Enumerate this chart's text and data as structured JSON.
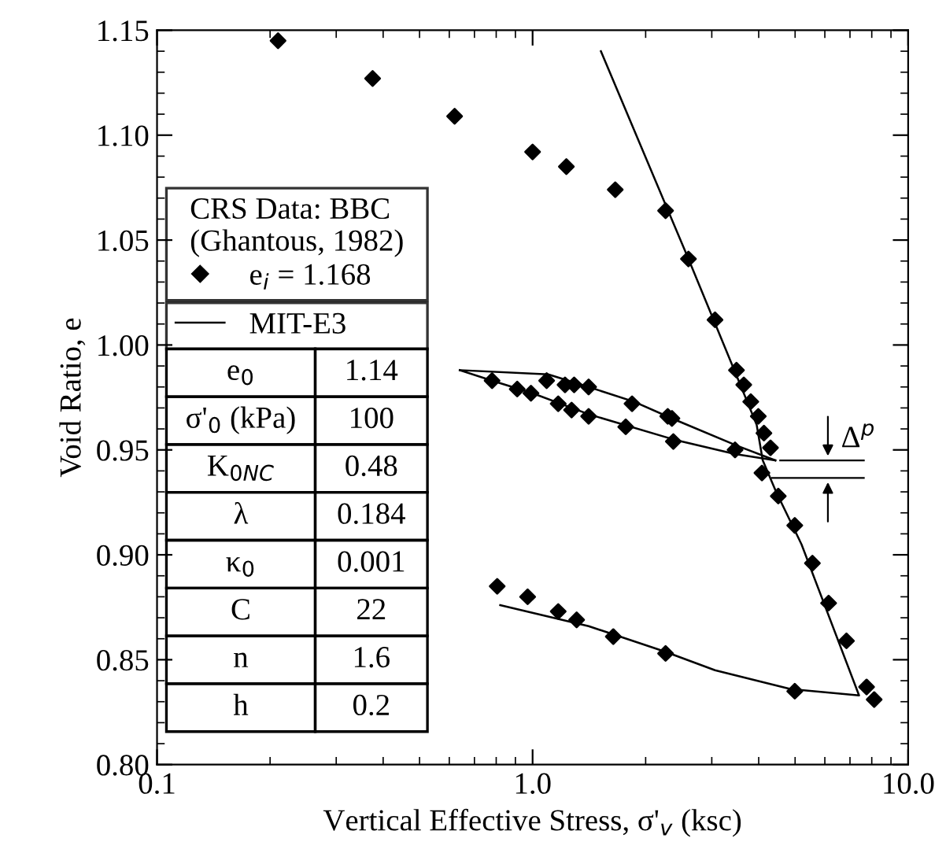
{
  "chart_data": {
    "type": "scatter",
    "xlabel": "Vertical Effective Stress, σ'$_{v}$ (ksc)",
    "ylabel": "Void Ratio, e",
    "log": "x",
    "xlim": [
      0.1,
      10.0
    ],
    "ylim": [
      0.8,
      1.15
    ],
    "xticks": [
      {
        "value": 0.1,
        "label": "0.1"
      },
      {
        "value": 1.0,
        "label": "1.0"
      },
      {
        "value": 10.0,
        "label": "10.0"
      }
    ],
    "yticks": [
      {
        "value": 0.8,
        "label": "0.80"
      },
      {
        "value": 0.85,
        "label": "0.85"
      },
      {
        "value": 0.9,
        "label": "0.90"
      },
      {
        "value": 0.95,
        "label": "0.95"
      },
      {
        "value": 1.0,
        "label": "1.00"
      },
      {
        "value": 1.05,
        "label": "1.05"
      },
      {
        "value": 1.1,
        "label": "1.10"
      },
      {
        "value": 1.15,
        "label": "1.15"
      }
    ],
    "grid": false,
    "legend": "left",
    "legend_title": "CRS Data: BBC\n(Ghantous, 1982)",
    "series": [
      {
        "name": "e$_{i}$ = 1.168",
        "marker": "diamond",
        "color": "#000000",
        "x": [
          0.21,
          0.375,
          0.62,
          1.0,
          1.23,
          1.66,
          2.26,
          2.6,
          3.06,
          3.49,
          3.65,
          3.81,
          3.99,
          1.09,
          1.22,
          1.29,
          1.41,
          1.84,
          2.29,
          2.35,
          0.78,
          0.91,
          0.99,
          1.17,
          1.27,
          1.41,
          1.77,
          2.37,
          3.46,
          4.13,
          4.3,
          4.08,
          4.51,
          4.99,
          5.56,
          6.14,
          6.85,
          7.75,
          8.12,
          0.805,
          0.97,
          1.17,
          1.31,
          1.64,
          2.26,
          4.99
        ],
        "values": [
          1.145,
          1.127,
          1.109,
          1.092,
          1.085,
          1.074,
          1.064,
          1.041,
          1.012,
          0.988,
          0.981,
          0.973,
          0.966,
          0.983,
          0.981,
          0.981,
          0.98,
          0.972,
          0.966,
          0.965,
          0.983,
          0.979,
          0.977,
          0.972,
          0.969,
          0.966,
          0.961,
          0.954,
          0.95,
          0.958,
          0.951,
          0.939,
          0.928,
          0.914,
          0.896,
          0.877,
          0.859,
          0.837,
          0.831,
          0.885,
          0.88,
          0.873,
          0.869,
          0.861,
          0.853,
          0.835
        ]
      },
      {
        "name": "MIT-E3",
        "type": "line",
        "marker": "none",
        "line_style": "solid",
        "color": "#000000",
        "x": [
          1.52,
          2.6,
          3.5,
          3.95,
          4.1,
          4.45,
          5.2,
          7.4,
          4.87,
          3.06,
          2.24,
          1.41,
          0.82
        ],
        "values": [
          1.14,
          1.041,
          0.985,
          0.962,
          0.945,
          0.93,
          0.905,
          0.833,
          0.836,
          0.845,
          0.854,
          0.866,
          0.876
        ]
      },
      {
        "type": "line",
        "marker": "none",
        "line_style": "solid",
        "color": "#000000",
        "x": [
          0.64,
          1.1,
          1.41,
          1.86,
          2.35,
          3.5,
          4.43
        ],
        "values": [
          0.988,
          0.986,
          0.98,
          0.973,
          0.965,
          0.952,
          0.945
        ]
      },
      {
        "type": "line",
        "marker": "none",
        "line_style": "solid",
        "color": "#000000",
        "x": [
          0.64,
          0.78,
          1.0,
          1.41,
          2.37,
          3.46,
          4.43
        ],
        "values": [
          0.988,
          0.983,
          0.977,
          0.967,
          0.955,
          0.948,
          0.945
        ]
      }
    ],
    "annotations": [
      {
        "text": "Δ$^{p}$",
        "x": 4.43,
        "y": 0.945
      },
      "e$_{0}$",
      "1.14",
      "σ'$_{0}$ (kPa)",
      "100",
      "K$_{0NC}$",
      "0.48",
      "λ",
      "0.184",
      "κ$_{0}$",
      "0.001",
      "C",
      "22",
      "n",
      "1.6",
      "h",
      "0.2"
    ]
  }
}
